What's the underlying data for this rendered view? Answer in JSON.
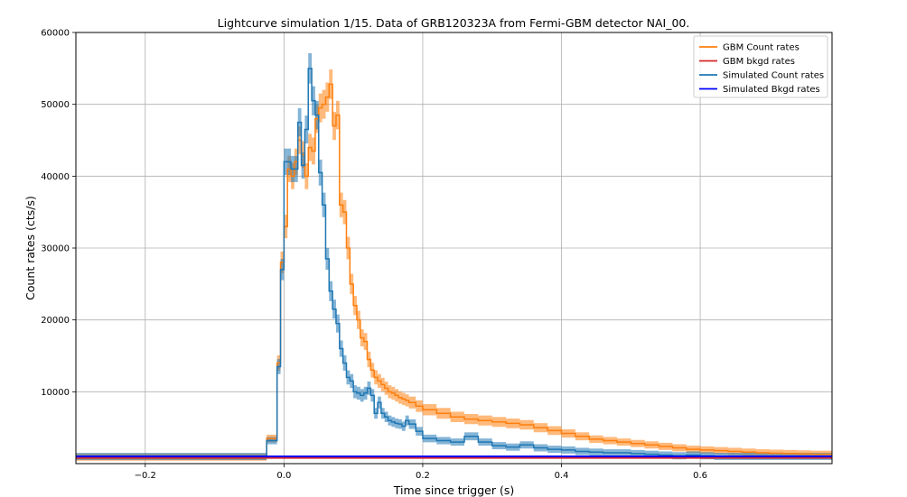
{
  "chart_data": {
    "type": "line",
    "title": "Lightcurve simulation 1/15. Data of GRB120323A from Fermi-GBM detector NAI_00.",
    "xlabel": "Time since trigger (s)",
    "ylabel": "Count rates (cts/s)",
    "xlim": [
      -0.3,
      0.79
    ],
    "ylim": [
      0,
      60000
    ],
    "xticks": [
      -0.2,
      0.0,
      0.2,
      0.4,
      0.6
    ],
    "xtick_labels": [
      "−0.2",
      "0.0",
      "0.2",
      "0.4",
      "0.6"
    ],
    "yticks": [
      10000,
      20000,
      30000,
      40000,
      50000,
      60000
    ],
    "ytick_labels": [
      "10000",
      "20000",
      "30000",
      "40000",
      "50000",
      "60000"
    ],
    "grid": true,
    "legend_position": "top-right",
    "step": "post",
    "series": [
      {
        "name": "GBM Count rates",
        "color": "#ff7f0e",
        "band": true,
        "x": [
          -0.3,
          -0.025,
          -0.01,
          -0.005,
          0.0,
          0.005,
          0.01,
          0.015,
          0.02,
          0.025,
          0.03,
          0.035,
          0.04,
          0.045,
          0.05,
          0.055,
          0.06,
          0.065,
          0.07,
          0.075,
          0.08,
          0.085,
          0.09,
          0.095,
          0.1,
          0.105,
          0.11,
          0.115,
          0.12,
          0.125,
          0.13,
          0.135,
          0.14,
          0.145,
          0.15,
          0.155,
          0.16,
          0.165,
          0.17,
          0.175,
          0.18,
          0.19,
          0.2,
          0.22,
          0.24,
          0.26,
          0.28,
          0.3,
          0.32,
          0.34,
          0.36,
          0.38,
          0.4,
          0.42,
          0.44,
          0.46,
          0.48,
          0.5,
          0.52,
          0.54,
          0.56,
          0.58,
          0.6,
          0.62,
          0.64,
          0.66,
          0.68,
          0.7,
          0.72,
          0.74,
          0.76,
          0.79
        ],
        "y": [
          900,
          3500,
          14000,
          28000,
          33000,
          41000,
          40000,
          42000,
          45000,
          43000,
          40000,
          44000,
          43500,
          48000,
          49500,
          50000,
          51000,
          52800,
          47000,
          48500,
          36000,
          35000,
          30000,
          25000,
          22000,
          20000,
          17500,
          17000,
          14500,
          13000,
          12000,
          11500,
          11000,
          10500,
          10000,
          9800,
          9500,
          9200,
          9000,
          8800,
          8500,
          8000,
          7500,
          7000,
          6500,
          6200,
          6000,
          5800,
          5600,
          5400,
          5000,
          4600,
          4200,
          3800,
          3400,
          3200,
          3000,
          2800,
          2600,
          2400,
          2200,
          2000,
          1900,
          1800,
          1700,
          1600,
          1500,
          1450,
          1400,
          1350,
          1300,
          1300
        ]
      },
      {
        "name": "GBM bkgd rates",
        "color": "#d62728",
        "band": false,
        "x": [
          -0.3,
          0.79
        ],
        "y": [
          800,
          800
        ]
      },
      {
        "name": "Simulated Count rates",
        "color": "#1f77b4",
        "band": true,
        "x": [
          -0.3,
          -0.025,
          -0.01,
          -0.005,
          0.0,
          0.005,
          0.01,
          0.015,
          0.02,
          0.025,
          0.03,
          0.035,
          0.04,
          0.045,
          0.05,
          0.055,
          0.06,
          0.065,
          0.07,
          0.075,
          0.08,
          0.085,
          0.09,
          0.095,
          0.1,
          0.105,
          0.11,
          0.115,
          0.12,
          0.125,
          0.13,
          0.135,
          0.14,
          0.145,
          0.15,
          0.155,
          0.16,
          0.165,
          0.17,
          0.175,
          0.18,
          0.19,
          0.2,
          0.22,
          0.24,
          0.26,
          0.28,
          0.3,
          0.32,
          0.34,
          0.36,
          0.38,
          0.4,
          0.42,
          0.44,
          0.46,
          0.48,
          0.5,
          0.52,
          0.54,
          0.56,
          0.58,
          0.6,
          0.62,
          0.64,
          0.66,
          0.68,
          0.7,
          0.72,
          0.74,
          0.76,
          0.79
        ],
        "y": [
          1000,
          3200,
          13500,
          27000,
          42000,
          42000,
          41000,
          41000,
          47500,
          41500,
          46500,
          55000,
          50500,
          48500,
          40500,
          36000,
          28500,
          24000,
          21500,
          19500,
          16000,
          14000,
          12000,
          11500,
          10000,
          9800,
          9500,
          9800,
          10500,
          9500,
          7000,
          8500,
          7000,
          6500,
          6000,
          5800,
          5600,
          5500,
          5200,
          6000,
          5500,
          4500,
          3500,
          3200,
          3000,
          3800,
          3000,
          2500,
          2300,
          2600,
          2200,
          2000,
          1900,
          1700,
          1600,
          1500,
          1500,
          1400,
          1300,
          1200,
          1100,
          1200,
          1100,
          1000,
          1000,
          1000,
          1000,
          1000,
          1000,
          1000,
          1000,
          1000
        ]
      },
      {
        "name": "Simulated Bkgd rates",
        "color": "#0000ff",
        "band": false,
        "x": [
          -0.3,
          0.79
        ],
        "y": [
          1000,
          1000
        ]
      }
    ]
  }
}
